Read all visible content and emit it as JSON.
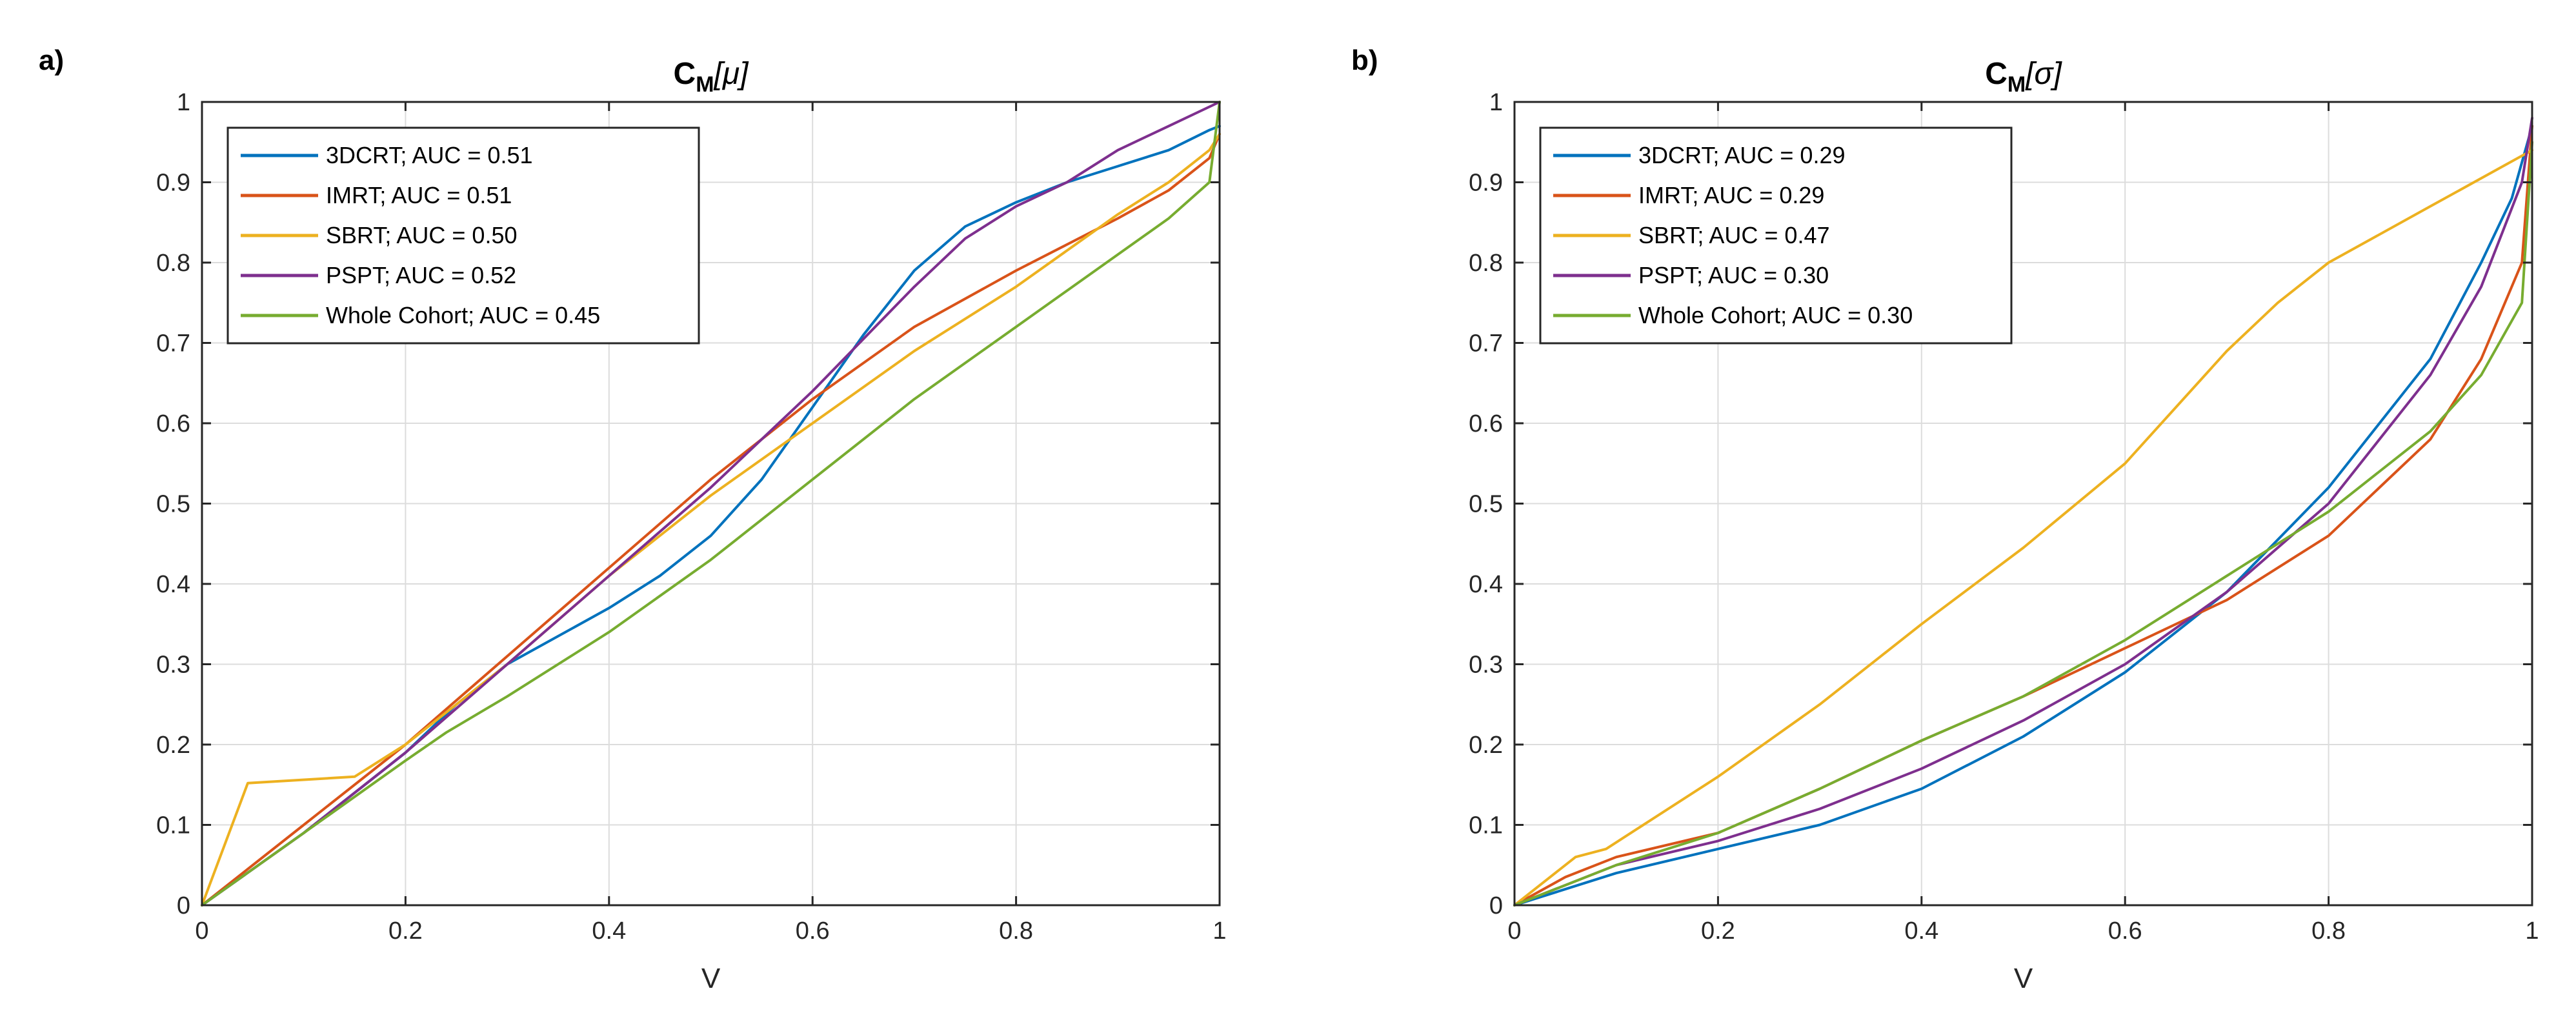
{
  "chart_data": [
    {
      "panel_label": "a)",
      "type": "line",
      "title": "C",
      "title_subscript": "M",
      "title_suffix": "[μ]",
      "xlabel": "V",
      "ylabel": "",
      "xlim": [
        0,
        1
      ],
      "ylim": [
        0,
        1
      ],
      "xticks": [
        0,
        0.2,
        0.4,
        0.6,
        0.8,
        1
      ],
      "xtick_labels": [
        "0",
        "0.2",
        "0.4",
        "0.6",
        "0.8",
        "1"
      ],
      "yticks": [
        0,
        0.1,
        0.2,
        0.3,
        0.4,
        0.5,
        0.6,
        0.7,
        0.8,
        0.9,
        1
      ],
      "ytick_labels": [
        "0",
        "0.1",
        "0.2",
        "0.3",
        "0.4",
        "0.5",
        "0.6",
        "0.7",
        "0.8",
        "0.9",
        "1"
      ],
      "grid": true,
      "legend_position": "top-left",
      "series": [
        {
          "name": "3DCRT; AUC = 0.51",
          "color": "#0072BD",
          "x": [
            0,
            0.1,
            0.2,
            0.25,
            0.3,
            0.4,
            0.45,
            0.5,
            0.55,
            0.6,
            0.65,
            0.7,
            0.75,
            0.8,
            0.85,
            0.9,
            0.95,
            0.99,
            1
          ],
          "y": [
            0,
            0.09,
            0.19,
            0.25,
            0.3,
            0.37,
            0.41,
            0.46,
            0.53,
            0.62,
            0.71,
            0.79,
            0.845,
            0.875,
            0.9,
            0.92,
            0.94,
            0.965,
            0.97
          ]
        },
        {
          "name": "IMRT; AUC = 0.51",
          "color": "#D95319",
          "x": [
            0,
            0.1,
            0.2,
            0.3,
            0.4,
            0.5,
            0.6,
            0.7,
            0.8,
            0.9,
            0.95,
            0.99,
            1
          ],
          "y": [
            0,
            0.1,
            0.2,
            0.31,
            0.42,
            0.53,
            0.63,
            0.72,
            0.79,
            0.855,
            0.89,
            0.93,
            0.96
          ]
        },
        {
          "name": "SBRT; AUC = 0.50",
          "color": "#EDB120",
          "x": [
            0,
            0.045,
            0.15,
            0.2,
            0.3,
            0.4,
            0.5,
            0.6,
            0.7,
            0.8,
            0.9,
            0.95,
            0.99,
            1
          ],
          "y": [
            0,
            0.152,
            0.16,
            0.2,
            0.3,
            0.41,
            0.51,
            0.6,
            0.69,
            0.77,
            0.86,
            0.9,
            0.94,
            0.96
          ]
        },
        {
          "name": "PSPT; AUC = 0.52",
          "color": "#7E2F8E",
          "x": [
            0,
            0.1,
            0.2,
            0.3,
            0.4,
            0.5,
            0.6,
            0.7,
            0.75,
            0.8,
            0.85,
            0.9,
            0.95,
            1
          ],
          "y": [
            0,
            0.09,
            0.19,
            0.3,
            0.41,
            0.52,
            0.64,
            0.77,
            0.83,
            0.87,
            0.9,
            0.94,
            0.97,
            1.0
          ]
        },
        {
          "name": "Whole Cohort; AUC = 0.45",
          "color": "#77AC30",
          "x": [
            0,
            0.1,
            0.2,
            0.24,
            0.3,
            0.4,
            0.5,
            0.6,
            0.7,
            0.8,
            0.9,
            0.95,
            0.99,
            1
          ],
          "y": [
            0,
            0.09,
            0.18,
            0.215,
            0.26,
            0.34,
            0.43,
            0.53,
            0.63,
            0.72,
            0.81,
            0.855,
            0.9,
            1.0
          ]
        }
      ]
    },
    {
      "panel_label": "b)",
      "type": "line",
      "title": "C",
      "title_subscript": "M",
      "title_suffix": "[σ]",
      "xlabel": "V",
      "ylabel": "",
      "xlim": [
        0,
        1
      ],
      "ylim": [
        0,
        1
      ],
      "xticks": [
        0,
        0.2,
        0.4,
        0.6,
        0.8,
        1
      ],
      "xtick_labels": [
        "0",
        "0.2",
        "0.4",
        "0.6",
        "0.8",
        "1"
      ],
      "yticks": [
        0,
        0.1,
        0.2,
        0.3,
        0.4,
        0.5,
        0.6,
        0.7,
        0.8,
        0.9,
        1
      ],
      "ytick_labels": [
        "0",
        "0.1",
        "0.2",
        "0.3",
        "0.4",
        "0.5",
        "0.6",
        "0.7",
        "0.8",
        "0.9",
        "1"
      ],
      "grid": true,
      "legend_position": "top-left",
      "series": [
        {
          "name": "3DCRT; AUC = 0.29",
          "color": "#0072BD",
          "x": [
            0,
            0.1,
            0.2,
            0.3,
            0.4,
            0.5,
            0.6,
            0.7,
            0.8,
            0.9,
            0.95,
            0.98,
            1
          ],
          "y": [
            0,
            0.04,
            0.07,
            0.1,
            0.145,
            0.21,
            0.29,
            0.39,
            0.52,
            0.68,
            0.8,
            0.88,
            0.97
          ]
        },
        {
          "name": "IMRT; AUC = 0.29",
          "color": "#D95319",
          "x": [
            0,
            0.05,
            0.1,
            0.2,
            0.3,
            0.4,
            0.5,
            0.6,
            0.7,
            0.8,
            0.9,
            0.95,
            0.99,
            1
          ],
          "y": [
            0,
            0.035,
            0.06,
            0.09,
            0.145,
            0.205,
            0.26,
            0.32,
            0.38,
            0.46,
            0.58,
            0.68,
            0.8,
            0.97
          ]
        },
        {
          "name": "SBRT; AUC = 0.47",
          "color": "#EDB120",
          "x": [
            0,
            0.06,
            0.09,
            0.2,
            0.3,
            0.4,
            0.5,
            0.6,
            0.7,
            0.75,
            0.8,
            0.9,
            1
          ],
          "y": [
            0,
            0.06,
            0.07,
            0.16,
            0.25,
            0.35,
            0.445,
            0.55,
            0.69,
            0.75,
            0.8,
            0.87,
            0.94
          ]
        },
        {
          "name": "PSPT; AUC = 0.30",
          "color": "#7E2F8E",
          "x": [
            0,
            0.1,
            0.2,
            0.3,
            0.4,
            0.5,
            0.6,
            0.7,
            0.8,
            0.9,
            0.95,
            0.99,
            1
          ],
          "y": [
            0,
            0.05,
            0.08,
            0.12,
            0.17,
            0.23,
            0.3,
            0.39,
            0.5,
            0.66,
            0.77,
            0.9,
            0.98
          ]
        },
        {
          "name": "Whole Cohort; AUC = 0.30",
          "color": "#77AC30",
          "x": [
            0,
            0.1,
            0.2,
            0.3,
            0.4,
            0.5,
            0.6,
            0.7,
            0.8,
            0.9,
            0.95,
            0.99,
            1
          ],
          "y": [
            0,
            0.05,
            0.09,
            0.145,
            0.205,
            0.26,
            0.33,
            0.41,
            0.49,
            0.59,
            0.66,
            0.75,
            0.95
          ]
        }
      ]
    }
  ]
}
